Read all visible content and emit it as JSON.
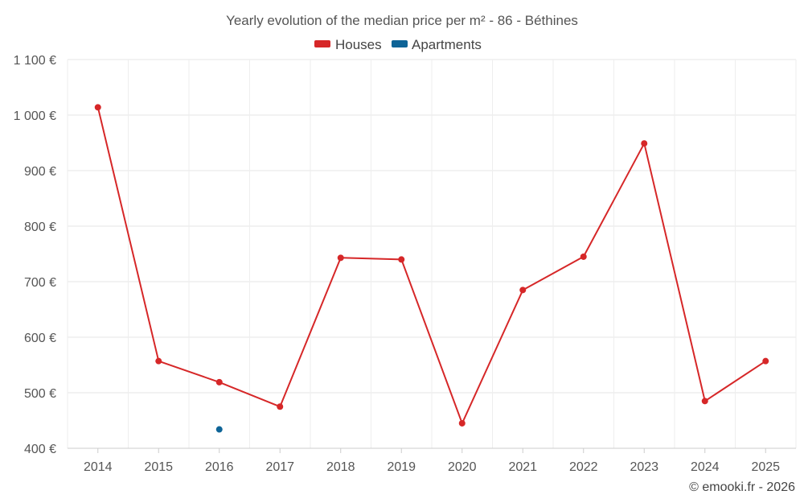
{
  "chart_data": {
    "type": "line",
    "title": "Yearly evolution of the median price per m² - 86 - Béthines",
    "categories": [
      "2014",
      "2015",
      "2016",
      "2017",
      "2018",
      "2019",
      "2020",
      "2021",
      "2022",
      "2023",
      "2024",
      "2025"
    ],
    "series": [
      {
        "name": "Houses",
        "color": "#d62728",
        "values": [
          1014,
          557,
          519,
          475,
          743,
          740,
          445,
          685,
          745,
          949,
          485,
          557
        ]
      },
      {
        "name": "Apartments",
        "color": "#0e6497",
        "values": [
          null,
          null,
          434,
          null,
          null,
          null,
          null,
          null,
          null,
          null,
          null,
          null
        ]
      }
    ],
    "ylim": [
      400,
      1100
    ],
    "y_ticks": [
      400,
      500,
      600,
      700,
      800,
      900,
      1000,
      1100
    ],
    "y_tick_labels": [
      "400 €",
      "500 €",
      "600 €",
      "700 €",
      "800 €",
      "900 €",
      "1 000 €",
      "1 100 €"
    ],
    "grid": true,
    "legend_position": "top-center"
  },
  "credit": "© emooki.fr - 2026"
}
